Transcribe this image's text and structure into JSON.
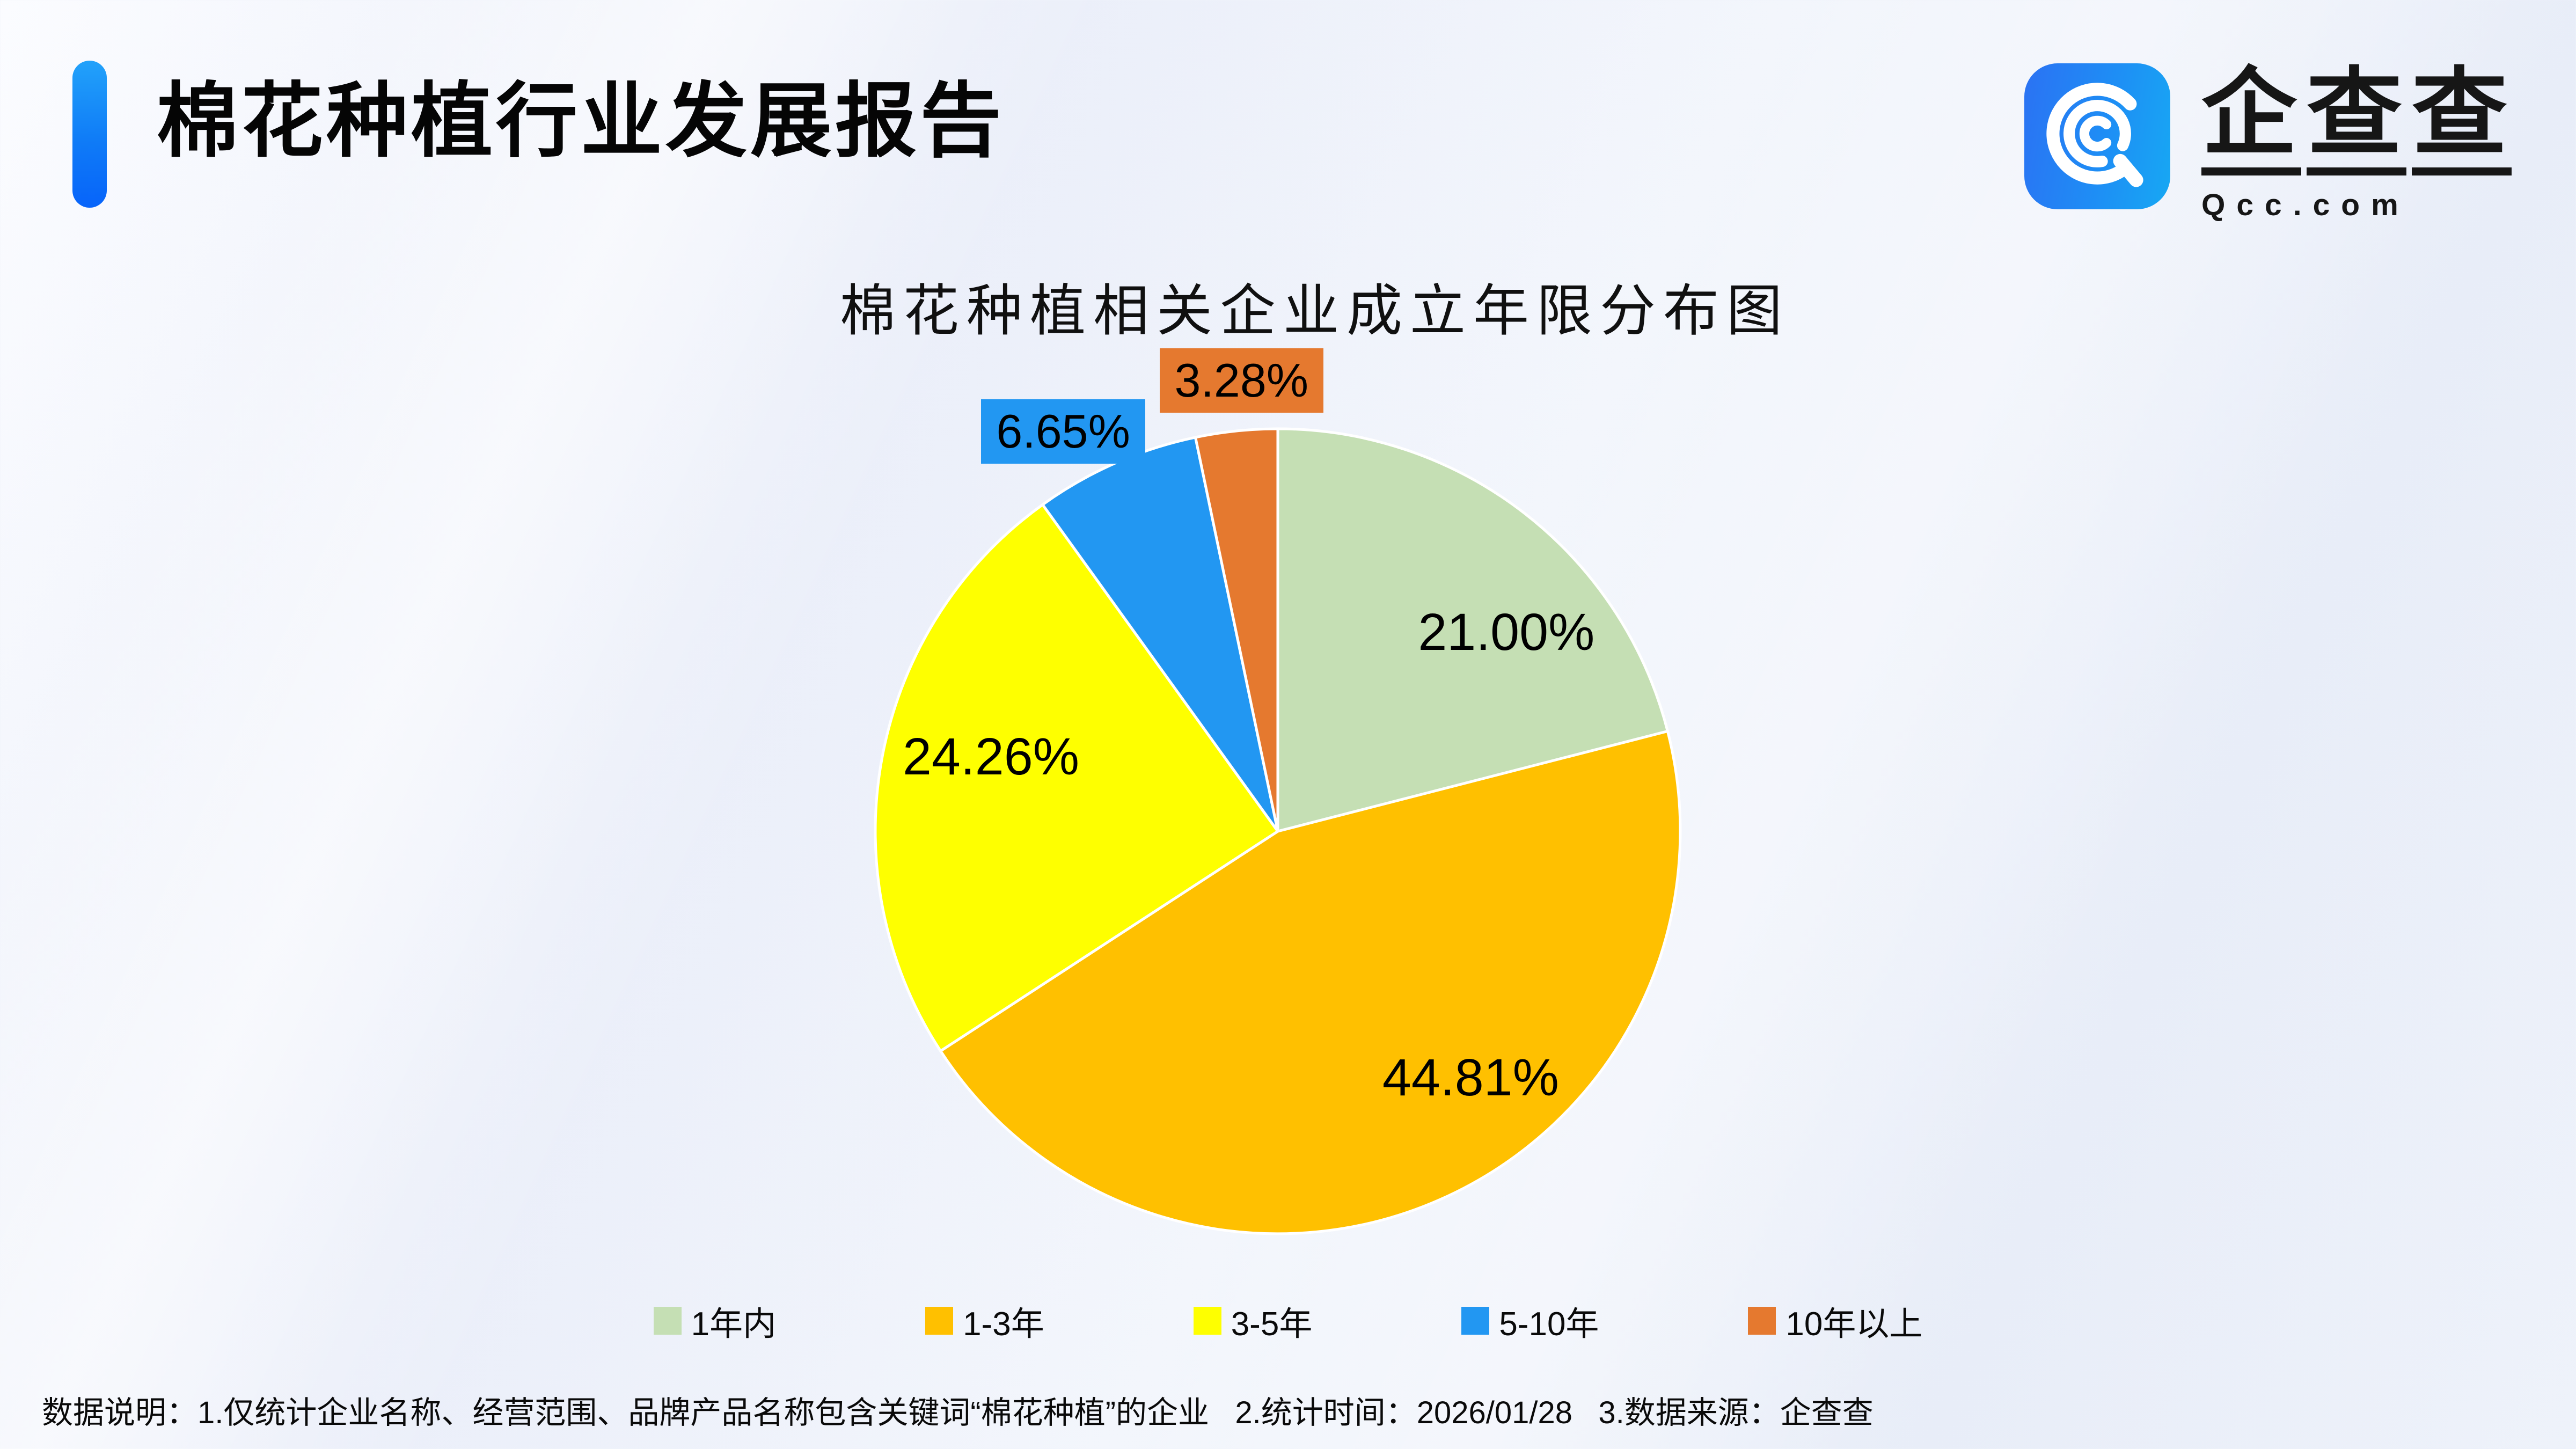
{
  "header": {
    "title": "棉花种植行业发展报告",
    "accent_color": "#0f7bf7"
  },
  "logo": {
    "name": "企查查",
    "domain": "Qcc.com",
    "icon": "qcc-magnifier-q-icon",
    "brand_blue": "#1e8ef5"
  },
  "chart_data": {
    "type": "pie",
    "title": "棉花种植相关企业成立年限分布图",
    "categories": [
      "1年内",
      "1-3年",
      "3-5年",
      "5-10年",
      "10年以上"
    ],
    "values": [
      21.0,
      44.81,
      24.26,
      6.65,
      3.28
    ],
    "labels": [
      "21.00%",
      "44.81%",
      "24.26%",
      "6.65%",
      "3.28%"
    ],
    "colors": [
      "#c5dfb4",
      "#ffc000",
      "#feff00",
      "#2297f2",
      "#e5792f"
    ],
    "start_angle_deg": 0,
    "direction": "clockwise",
    "slice_border_color": "#ffffff",
    "legend_position": "bottom",
    "label_color": "#000000"
  },
  "footer": {
    "note": "数据说明：1.仅统计企业名称、经营范围、品牌产品名称包含关键词“棉花种植”的企业   2.统计时间：2026/01/28   3.数据来源：企查查"
  }
}
